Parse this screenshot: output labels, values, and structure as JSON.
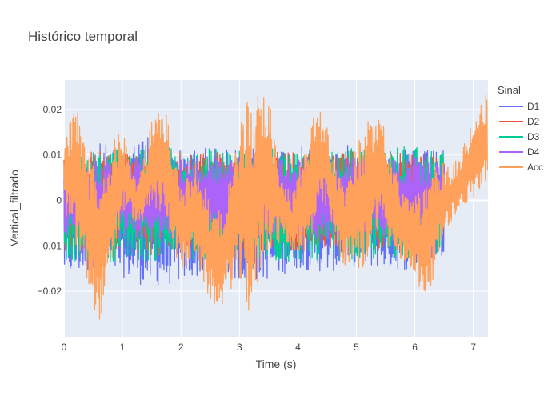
{
  "chart_data": {
    "type": "line",
    "title": "Histórico temporal",
    "xlabel": "Time (s)",
    "ylabel": "Vertical_filtrado",
    "xlim": [
      0,
      7.25
    ],
    "ylim": [
      -0.03,
      0.0265
    ],
    "x_ticks": [
      0,
      1,
      2,
      3,
      4,
      5,
      6,
      7
    ],
    "x_tick_labels": [
      "0",
      "1",
      "2",
      "3",
      "4",
      "5",
      "6",
      "7"
    ],
    "y_ticks": [
      -0.02,
      -0.01,
      0,
      0.01,
      0.02
    ],
    "y_tick_labels": [
      "−0.02",
      "−0.01",
      "0",
      "0.01",
      "0.02"
    ],
    "grid": true,
    "plot_background": "#e5ecf6",
    "legend": {
      "title": "Sinal",
      "position": "right"
    },
    "series": [
      {
        "name": "D1",
        "color": "#636efa",
        "x": [
          0,
          0.5,
          1,
          1.5,
          2,
          2.5,
          3,
          3.5,
          4,
          4.5,
          5,
          5.5,
          6,
          6.5
        ],
        "y_max": [
          0.011,
          0.013,
          0.0115,
          0.0155,
          0.011,
          0.012,
          0.011,
          0.012,
          0.012,
          0.0115,
          0.0125,
          0.0115,
          0.011,
          0.011
        ],
        "y_min": [
          -0.017,
          -0.016,
          -0.017,
          -0.0195,
          -0.018,
          -0.016,
          -0.018,
          -0.0175,
          -0.015,
          -0.016,
          -0.0145,
          -0.015,
          -0.0155,
          -0.012
        ]
      },
      {
        "name": "D2",
        "color": "#ef553b",
        "x": [
          0,
          0.5,
          1,
          1.5,
          2,
          2.5,
          3,
          3.5,
          4,
          4.5,
          5,
          5.5,
          6,
          6.5
        ],
        "y_max": [
          0.0105,
          0.011,
          0.0105,
          0.012,
          0.0105,
          0.011,
          0.0105,
          0.011,
          0.0105,
          0.0105,
          0.011,
          0.0105,
          0.0105,
          0.01
        ],
        "y_min": [
          -0.011,
          -0.0115,
          -0.011,
          -0.0125,
          -0.011,
          -0.0115,
          -0.011,
          -0.0115,
          -0.011,
          -0.011,
          -0.0115,
          -0.011,
          -0.011,
          -0.0105
        ]
      },
      {
        "name": "D3",
        "color": "#00cc96",
        "x": [
          0,
          0.5,
          1,
          1.5,
          2,
          2.5,
          3,
          3.5,
          4,
          4.5,
          5,
          5.5,
          6,
          6.5
        ],
        "y_max": [
          0.011,
          0.011,
          0.0115,
          0.0125,
          0.011,
          0.0115,
          0.011,
          0.0115,
          0.011,
          0.011,
          0.0115,
          0.012,
          0.0125,
          0.0105
        ],
        "y_min": [
          -0.013,
          -0.014,
          -0.013,
          -0.0135,
          -0.013,
          -0.014,
          -0.013,
          -0.014,
          -0.0135,
          -0.013,
          -0.0135,
          -0.013,
          -0.013,
          -0.011
        ]
      },
      {
        "name": "D4",
        "color": "#ab63fa",
        "x": [
          0,
          0.5,
          1,
          1.5,
          2,
          2.5,
          3,
          3.5,
          4,
          4.5,
          5,
          5.5,
          6,
          6.5
        ],
        "y_max": [
          0.0095,
          0.0095,
          0.0095,
          0.0095,
          0.0095,
          0.0095,
          0.0095,
          0.0095,
          0.0095,
          0.0095,
          0.0095,
          0.0095,
          0.0095,
          0.009
        ],
        "y_min": [
          -0.0085,
          -0.009,
          -0.0085,
          -0.009,
          -0.0085,
          -0.009,
          -0.0085,
          -0.009,
          -0.0085,
          -0.009,
          -0.0085,
          -0.009,
          -0.0085,
          -0.008
        ]
      },
      {
        "name": "Acc",
        "color": "#ffa15a",
        "x": [
          0,
          0.1,
          0.2,
          0.35,
          0.5,
          0.6,
          0.75,
          0.9,
          1.0,
          1.1,
          1.25,
          1.4,
          1.5,
          1.65,
          1.75,
          1.85,
          2.0,
          2.1,
          2.25,
          2.4,
          2.5,
          2.6,
          2.75,
          2.9,
          3.0,
          3.1,
          3.25,
          3.4,
          3.5,
          3.6,
          3.75,
          3.9,
          4.0,
          4.1,
          4.25,
          4.4,
          4.5,
          4.6,
          4.75,
          4.9,
          5.0,
          5.1,
          5.25,
          5.4,
          5.5,
          5.6,
          5.75,
          5.9,
          6.0,
          6.1,
          6.25,
          6.4,
          6.5,
          6.6,
          6.75,
          6.9,
          7.0,
          7.1,
          7.24
        ],
        "y_max": [
          0.012,
          0.018,
          0.022,
          0.013,
          0.008,
          0.003,
          0.009,
          0.015,
          0.016,
          0.01,
          0.004,
          0.011,
          0.0175,
          0.0205,
          0.021,
          0.012,
          0.003,
          0.006,
          0.01,
          0.004,
          0.0,
          -0.004,
          0.002,
          0.009,
          0.016,
          0.022,
          0.024,
          0.0265,
          0.024,
          0.014,
          0.004,
          0.002,
          0.008,
          0.013,
          0.018,
          0.02,
          0.017,
          0.009,
          0.004,
          0.006,
          0.012,
          0.016,
          0.02,
          0.018,
          0.016,
          0.01,
          0.003,
          0.0,
          0.004,
          0.002,
          0.004,
          0.009,
          0.009,
          0.0065,
          0.01,
          0.014,
          0.018,
          0.021,
          0.024
        ],
        "y_min": [
          -0.002,
          -0.006,
          -0.011,
          -0.017,
          -0.023,
          -0.027,
          -0.02,
          -0.01,
          -0.004,
          -0.002,
          -0.006,
          -0.004,
          -0.002,
          -0.003,
          -0.004,
          -0.01,
          -0.016,
          -0.015,
          -0.012,
          -0.019,
          -0.022,
          -0.024,
          -0.023,
          -0.018,
          -0.0185,
          -0.025,
          -0.025,
          -0.013,
          -0.011,
          -0.011,
          -0.008,
          -0.012,
          -0.01,
          -0.014,
          -0.009,
          -0.002,
          -0.002,
          -0.008,
          -0.014,
          -0.015,
          -0.014,
          -0.017,
          -0.01,
          -0.005,
          -0.009,
          -0.012,
          -0.014,
          -0.015,
          -0.016,
          -0.0225,
          -0.0195,
          -0.014,
          -0.007,
          -0.005,
          -0.002,
          -0.001,
          0.0,
          0.001,
          0.005
        ]
      }
    ]
  }
}
